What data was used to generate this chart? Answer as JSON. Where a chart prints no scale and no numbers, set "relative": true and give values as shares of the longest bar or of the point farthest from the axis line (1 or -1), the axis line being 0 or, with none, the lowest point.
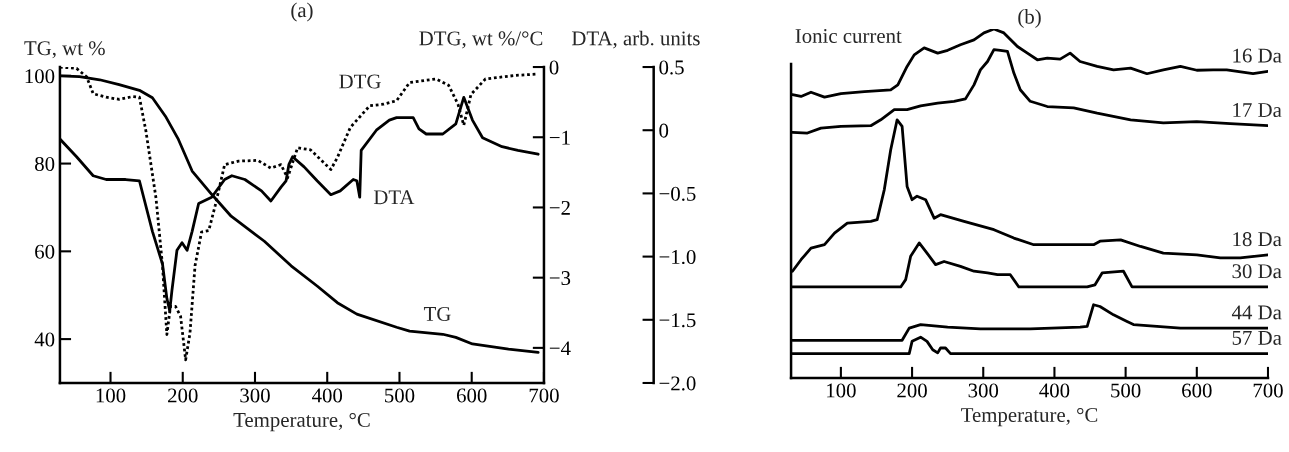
{
  "chart_data": [
    {
      "type": "line",
      "title": "(a)",
      "xlabel": "Temperature, °C",
      "ylabel": "TG, wt %",
      "y2label": "DTG, wt %/°C",
      "y3label": "DTA, arb. units",
      "xlim": [
        30,
        700
      ],
      "xticks": [
        100,
        200,
        300,
        400,
        500,
        600,
        700
      ],
      "ylim": [
        30,
        102
      ],
      "yticks": [
        40,
        60,
        80,
        100
      ],
      "y2lim": [
        -4.5,
        0
      ],
      "y2ticks": [
        0,
        {
          "value": -1,
          "label": "−1"
        },
        {
          "value": -2,
          "label": "−2"
        },
        {
          "value": -3,
          "label": "−3"
        },
        {
          "value": -4,
          "label": "−4"
        }
      ],
      "y3lim": [
        -2.0,
        0.5
      ],
      "y3ticks": [
        0.5,
        0,
        {
          "value": -0.5,
          "label": "−0.5"
        },
        {
          "value": -1.0,
          "label": "−1.0"
        },
        {
          "value": -1.5,
          "label": "−1.5"
        },
        {
          "value": -2.0,
          "label": "−2.0"
        }
      ],
      "grid": false,
      "legend": false,
      "series": [
        {
          "name": "TG",
          "color": "#000000",
          "axis": "y",
          "line_style": "solid",
          "x": [
            30,
            57,
            85,
            112,
            140,
            158,
            176,
            194,
            213,
            240,
            267,
            313,
            350,
            386,
            414,
            441,
            496,
            514,
            560,
            578,
            601,
            651,
            692
          ],
          "values": [
            100,
            99.8,
            99.1,
            98,
            96.7,
            95,
            90.8,
            85.5,
            78.3,
            73,
            68,
            62.3,
            56.7,
            52.1,
            48.3,
            45.7,
            42.7,
            41.8,
            41.1,
            40.4,
            38.9,
            37.7,
            37.0
          ]
        },
        {
          "name": "DTG",
          "color": "#000000",
          "axis": "y2",
          "line_style": "dotted",
          "x": [
            30,
            53,
            67,
            76,
            94,
            112,
            131,
            140,
            149,
            163,
            172,
            178,
            183,
            190,
            197,
            204,
            210,
            217,
            226,
            236,
            245,
            258,
            277,
            304,
            322,
            336,
            345,
            359,
            377,
            405,
            414,
            432,
            459,
            478,
            496,
            514,
            551,
            568,
            581,
            589,
            599,
            619,
            660,
            692
          ],
          "values": [
            0,
            -0.02,
            -0.14,
            -0.38,
            -0.43,
            -0.46,
            -0.42,
            -0.43,
            -0.91,
            -1.87,
            -2.83,
            -3.81,
            -3.41,
            -3.41,
            -3.55,
            -4.17,
            -3.79,
            -2.83,
            -2.35,
            -2.33,
            -1.97,
            -1.39,
            -1.34,
            -1.33,
            -1.44,
            -1.39,
            -1.58,
            -1.15,
            -1.18,
            -1.46,
            -1.29,
            -0.86,
            -0.55,
            -0.53,
            -0.48,
            -0.22,
            -0.17,
            -0.26,
            -0.53,
            -0.83,
            -0.39,
            -0.17,
            -0.12,
            -0.1
          ]
        },
        {
          "name": "DTA",
          "color": "#000000",
          "axis": "y3",
          "line_style": "solid",
          "x": [
            30,
            53,
            76,
            94,
            121,
            140,
            158,
            172,
            178,
            182,
            185,
            192,
            199,
            206,
            213,
            222,
            240,
            258,
            268,
            286,
            309,
            322,
            336,
            343,
            347,
            352,
            368,
            386,
            405,
            418,
            436,
            441,
            445,
            447,
            468,
            486,
            496,
            519,
            527,
            537,
            560,
            578,
            589,
            601,
            615,
            642,
            664,
            692
          ],
          "values": [
            -0.07,
            -0.21,
            -0.36,
            -0.39,
            -0.39,
            -0.4,
            -0.8,
            -1.06,
            -1.33,
            -1.43,
            -1.27,
            -0.95,
            -0.89,
            -0.95,
            -0.8,
            -0.58,
            -0.53,
            -0.39,
            -0.36,
            -0.39,
            -0.48,
            -0.56,
            -0.45,
            -0.4,
            -0.27,
            -0.21,
            -0.29,
            -0.4,
            -0.51,
            -0.48,
            -0.39,
            -0.4,
            -0.53,
            -0.16,
            0.0,
            0.08,
            0.1,
            0.1,
            0.01,
            -0.03,
            -0.03,
            0.05,
            0.26,
            0.08,
            -0.06,
            -0.13,
            -0.16,
            -0.19
          ]
        }
      ]
    },
    {
      "type": "line",
      "title": "(b)",
      "xlabel": "Temperature, °C",
      "ylabel": "Ionic current",
      "relative": true,
      "tick_labels": "x",
      "xlim": [
        30,
        700
      ],
      "xticks": [
        100,
        200,
        300,
        400,
        500,
        600,
        700
      ],
      "grid": false,
      "legend": false,
      "series": [
        {
          "name": "16 Da",
          "color": "#000000",
          "x": [
            32,
            44,
            58,
            77,
            100,
            133,
            170,
            180,
            193,
            203,
            217,
            236,
            250,
            268,
            287,
            301,
            315,
            329,
            348,
            362,
            376,
            390,
            408,
            422,
            436,
            460,
            483,
            507,
            530,
            553,
            577,
            600,
            623,
            642,
            679,
            700
          ],
          "values": [
            0.812,
            0.807,
            0.819,
            0.805,
            0.815,
            0.821,
            0.826,
            0.84,
            0.893,
            0.926,
            0.946,
            0.931,
            0.939,
            0.955,
            0.969,
            0.989,
            1.0,
            0.989,
            0.95,
            0.931,
            0.912,
            0.917,
            0.914,
            0.931,
            0.907,
            0.893,
            0.883,
            0.888,
            0.872,
            0.883,
            0.893,
            0.882,
            0.883,
            0.883,
            0.872,
            0.879
          ]
        },
        {
          "name": "17 Da",
          "color": "#000000",
          "x": [
            32,
            53,
            72,
            100,
            142,
            156,
            175,
            193,
            212,
            236,
            259,
            275,
            287,
            296,
            306,
            315,
            324,
            334,
            343,
            352,
            366,
            390,
            427,
            460,
            507,
            553,
            600,
            647,
            700
          ],
          "values": [
            0.704,
            0.702,
            0.716,
            0.721,
            0.723,
            0.74,
            0.769,
            0.769,
            0.78,
            0.788,
            0.793,
            0.8,
            0.84,
            0.883,
            0.907,
            0.941,
            0.939,
            0.936,
            0.874,
            0.826,
            0.793,
            0.778,
            0.774,
            0.759,
            0.74,
            0.731,
            0.735,
            0.729,
            0.723
          ]
        },
        {
          "name": "18 Da",
          "color": "#000000",
          "x": [
            32,
            44,
            58,
            77,
            91,
            109,
            142,
            151,
            161,
            170,
            179,
            186,
            193,
            200,
            207,
            219,
            231,
            240,
            273,
            315,
            343,
            371,
            413,
            455,
            464,
            493,
            521,
            553,
            600,
            633,
            661,
            700
          ],
          "values": [
            0.306,
            0.339,
            0.372,
            0.382,
            0.415,
            0.444,
            0.449,
            0.454,
            0.54,
            0.654,
            0.74,
            0.721,
            0.549,
            0.511,
            0.521,
            0.511,
            0.458,
            0.468,
            0.449,
            0.425,
            0.401,
            0.382,
            0.382,
            0.382,
            0.392,
            0.396,
            0.377,
            0.358,
            0.353,
            0.344,
            0.344,
            0.353
          ]
        },
        {
          "name": "30 Da",
          "color": "#000000",
          "x": [
            32,
            184,
            191,
            198,
            210,
            221,
            233,
            245,
            268,
            287,
            306,
            320,
            338,
            350,
            446,
            457,
            467,
            497,
            509,
            700
          ],
          "values": [
            0.261,
            0.261,
            0.282,
            0.349,
            0.387,
            0.358,
            0.325,
            0.334,
            0.32,
            0.306,
            0.301,
            0.296,
            0.296,
            0.261,
            0.261,
            0.267,
            0.301,
            0.306,
            0.261,
            0.261
          ]
        },
        {
          "name": "44 Da",
          "color": "#000000",
          "x": [
            32,
            186,
            196,
            212,
            250,
            296,
            366,
            436,
            446,
            455,
            464,
            483,
            502,
            511,
            577,
            700
          ],
          "values": [
            0.108,
            0.108,
            0.143,
            0.153,
            0.146,
            0.141,
            0.141,
            0.146,
            0.148,
            0.21,
            0.205,
            0.181,
            0.162,
            0.153,
            0.143,
            0.143
          ]
        },
        {
          "name": "57 Da",
          "color": "#000000",
          "x": [
            32,
            196,
            200,
            212,
            221,
            229,
            236,
            240,
            247,
            254,
            700
          ],
          "values": [
            0.07,
            0.07,
            0.105,
            0.117,
            0.105,
            0.081,
            0.072,
            0.086,
            0.086,
            0.07,
            0.07
          ]
        }
      ]
    }
  ]
}
